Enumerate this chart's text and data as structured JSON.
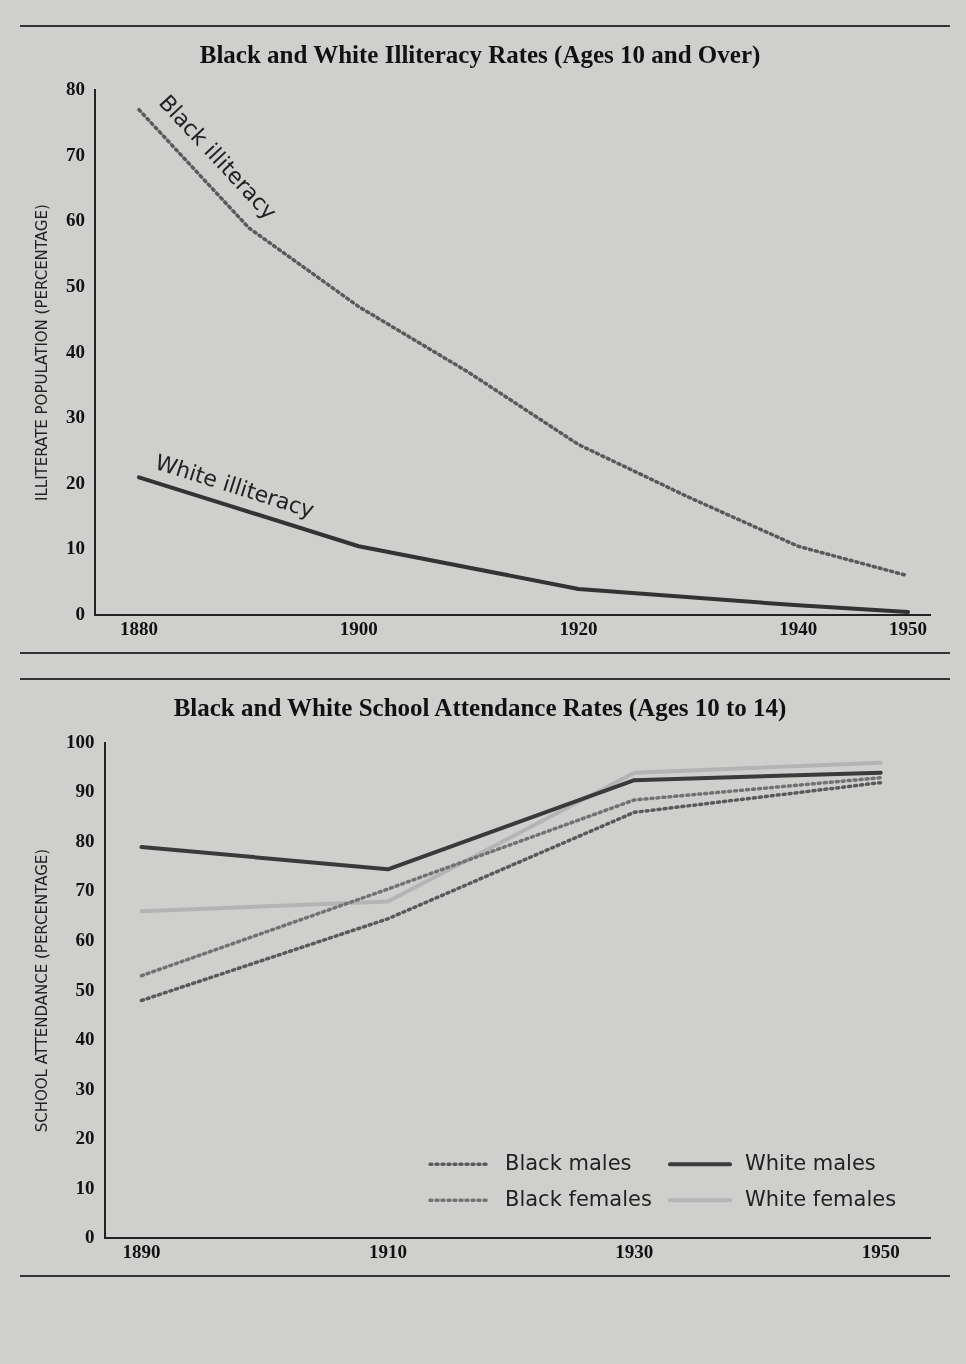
{
  "chart_data": [
    {
      "type": "line",
      "title": "Black and White Illiteracy Rates (Ages 10 and Over)",
      "ylabel": "ILLITERATE POPULATION (PERCENTAGE)",
      "x": [
        1880,
        1890,
        1900,
        1910,
        1920,
        1930,
        1940,
        1950
      ],
      "series": [
        {
          "name": "Black illiteracy",
          "color": "#5a5a5a",
          "line_style": "dotted",
          "values": [
            77,
            59,
            47,
            37,
            26,
            18,
            10.5,
            6
          ]
        },
        {
          "name": "White illiteracy",
          "color": "#333333",
          "line_style": "solid",
          "x": [
            1880,
            1900,
            1920,
            1940,
            1950
          ],
          "values": [
            21,
            10.5,
            4,
            1.5,
            0.5
          ]
        }
      ],
      "xlim": [
        1876,
        1952
      ],
      "xticks": [
        1880,
        1900,
        1920,
        1940,
        1950
      ],
      "ylim": [
        0,
        80
      ],
      "yticks": [
        0,
        10,
        20,
        30,
        40,
        50,
        60,
        70,
        80
      ],
      "grid": false,
      "legend": false,
      "marker": "none"
    },
    {
      "type": "line",
      "title": "Black and White School Attendance Rates (Ages 10 to 14)",
      "ylabel": "SCHOOL ATTENDANCE (PERCENTAGE)",
      "x": [
        1890,
        1910,
        1930,
        1950
      ],
      "series": [
        {
          "name": "Black males",
          "color": "#5a5a5a",
          "line_style": "dotted",
          "values": [
            48,
            64.5,
            86,
            92
          ]
        },
        {
          "name": "Black females",
          "color": "#727272",
          "line_style": "dotted",
          "values": [
            53,
            70.5,
            88.5,
            93
          ]
        },
        {
          "name": "White males",
          "color": "#3a3a3a",
          "line_style": "solid",
          "values": [
            79,
            74.5,
            92.5,
            94
          ]
        },
        {
          "name": "White females",
          "color": "#b4b4b4",
          "line_style": "solid",
          "values": [
            66,
            68,
            94,
            96
          ]
        }
      ],
      "xlim": [
        1887,
        1954
      ],
      "xticks": [
        1890,
        1910,
        1930,
        1950
      ],
      "ylim": [
        0,
        100
      ],
      "yticks": [
        0,
        10,
        20,
        30,
        40,
        50,
        60,
        70,
        80,
        90,
        100
      ],
      "grid": false,
      "legend": "bottom right",
      "marker": "none"
    }
  ]
}
